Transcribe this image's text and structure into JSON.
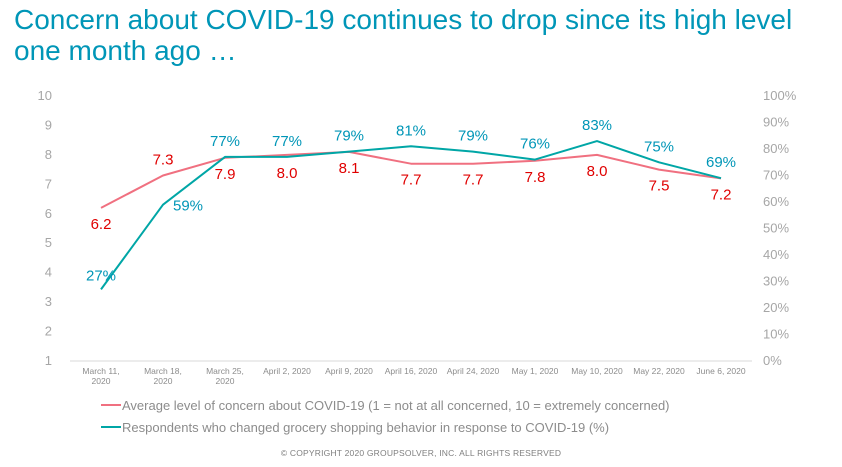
{
  "title": "Concern about COVID-19 continues to drop since its high level one month ago …",
  "copyright": "© COPYRIGHT 2020 GROUPSOLVER, INC. ALL RIGHTS RESERVED",
  "colors": {
    "title": "#0096b7",
    "concern": "#f07080",
    "concern_label": "#e00000",
    "behavior": "#00a6a6",
    "behavior_label": "#0096b7",
    "axis": "#d9d9d9"
  },
  "chart_data": {
    "type": "line",
    "categories": [
      [
        "March 11,",
        "2020"
      ],
      [
        "March 18,",
        "2020"
      ],
      [
        "March 25,",
        "2020"
      ],
      [
        "April 2, 2020"
      ],
      [
        "April 9, 2020"
      ],
      [
        "April 16, 2020"
      ],
      [
        "April 24, 2020"
      ],
      [
        "May 1, 2020"
      ],
      [
        "May 10, 2020"
      ],
      [
        "May 22, 2020"
      ],
      [
        "June 6, 2020"
      ]
    ],
    "series": [
      {
        "name": "Average level of concern about COVID-19 (1 = not at all concerned, 10 = extremely concerned)",
        "axis": "left",
        "values": [
          6.2,
          7.3,
          7.9,
          8.0,
          8.1,
          7.7,
          7.7,
          7.8,
          8.0,
          7.5,
          7.2
        ],
        "labels": [
          "6.2",
          "7.3",
          "7.9",
          "8.0",
          "8.1",
          "7.7",
          "7.7",
          "7.8",
          "8.0",
          "7.5",
          "7.2"
        ]
      },
      {
        "name": "Respondents who changed grocery shopping behavior in response to COVID-19 (%)",
        "axis": "right",
        "values": [
          27,
          59,
          77,
          77,
          79,
          81,
          79,
          76,
          83,
          75,
          69
        ],
        "labels": [
          "27%",
          "59%",
          "77%",
          "77%",
          "79%",
          "81%",
          "79%",
          "76%",
          "83%",
          "75%",
          "69%"
        ]
      }
    ],
    "y_left": {
      "min": 1,
      "max": 10,
      "ticks": [
        "1",
        "2",
        "3",
        "4",
        "5",
        "6",
        "7",
        "8",
        "9",
        "10"
      ]
    },
    "y_right": {
      "min": 0,
      "max": 100,
      "ticks": [
        "0%",
        "10%",
        "20%",
        "30%",
        "40%",
        "50%",
        "60%",
        "70%",
        "80%",
        "90%",
        "100%"
      ]
    },
    "grid": false,
    "legend_position": "bottom"
  }
}
